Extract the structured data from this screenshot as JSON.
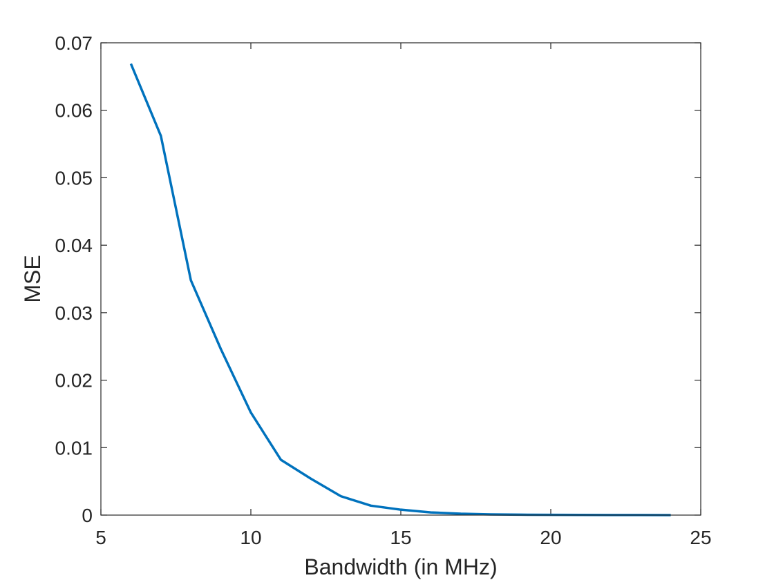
{
  "chart_data": {
    "type": "line",
    "title": "",
    "xlabel": "Bandwidth (in MHz)",
    "ylabel": "MSE",
    "xlim": [
      5,
      25
    ],
    "ylim": [
      0,
      0.07
    ],
    "x_ticks": [
      5,
      10,
      15,
      20,
      25
    ],
    "x_tick_labels": [
      "5",
      "10",
      "15",
      "20",
      "25"
    ],
    "y_ticks": [
      0,
      0.01,
      0.02,
      0.03,
      0.04,
      0.05,
      0.06,
      0.07
    ],
    "y_tick_labels": [
      "0",
      "0.01",
      "0.02",
      "0.03",
      "0.04",
      "0.05",
      "0.06",
      "0.07"
    ],
    "grid": false,
    "legend": "none",
    "series": [
      {
        "color": "#0072BD",
        "x": [
          6,
          7,
          8,
          9,
          10,
          11,
          12,
          13,
          14,
          15,
          16,
          17,
          18,
          19,
          20,
          21,
          22,
          23,
          24
        ],
        "y": [
          0.0669,
          0.0562,
          0.0348,
          0.0246,
          0.0152,
          0.0082,
          0.0054,
          0.0028,
          0.0014,
          0.0008,
          0.0004,
          0.0002,
          0.0001,
          6e-05,
          4e-05,
          2e-05,
          1e-05,
          1e-05,
          0.0
        ]
      }
    ]
  }
}
